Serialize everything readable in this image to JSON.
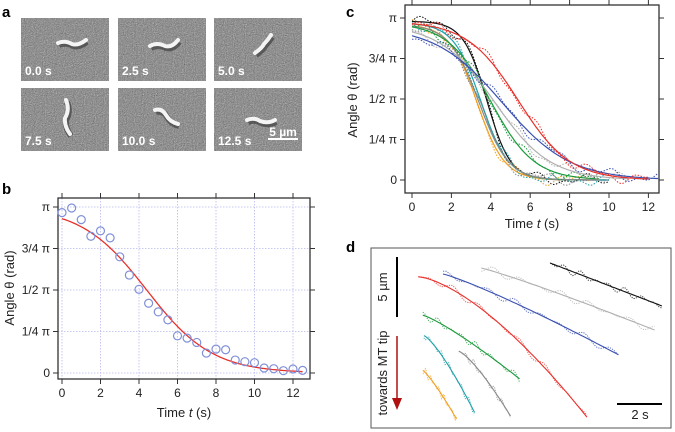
{
  "panel_labels": {
    "a": "a",
    "b": "b",
    "c": "c",
    "d": "d"
  },
  "panel_a": {
    "frames": [
      "0.0 s",
      "2.5 s",
      "5.0 s",
      "7.5 s",
      "10.0 s",
      "12.5 s"
    ],
    "scale_bar": "5 µm"
  },
  "chart_data": [
    {
      "type": "scatter",
      "panel": "b",
      "xlabel": {
        "pre": "Time ",
        "var": "t",
        "post": " (s)"
      },
      "ylabel": "Angle θ (rad)",
      "xlim": [
        0,
        12.5
      ],
      "ylim_frac_pi": [
        0,
        1
      ],
      "xticks": [
        "0",
        "2",
        "4",
        "6",
        "8",
        "10",
        "12"
      ],
      "yticks": [
        "0",
        "1/4 π",
        "1/2 π",
        "3/4 π",
        "π"
      ],
      "grid": true,
      "points_t": [
        0,
        0.5,
        1,
        1.5,
        2,
        2.5,
        3,
        3.5,
        4,
        4.5,
        5,
        5.5,
        6,
        6.5,
        7,
        7.5,
        8,
        8.5,
        9,
        9.5,
        10,
        10.5,
        11,
        11.5,
        12,
        12.5
      ],
      "points_theta_frac_pi": [
        0.966,
        0.994,
        0.924,
        0.824,
        0.856,
        0.814,
        0.7,
        0.59,
        0.504,
        0.42,
        0.368,
        0.32,
        0.224,
        0.21,
        0.184,
        0.12,
        0.144,
        0.14,
        0.078,
        0.068,
        0.062,
        0.03,
        0.026,
        0.014,
        0.024,
        0.016
      ],
      "point_color": "#8090d8",
      "fit": {
        "type": "sigmoid",
        "amplitude_frac_pi": 1.0,
        "t_half": 4.4,
        "width": 1.7,
        "color": "#e8302a"
      }
    },
    {
      "type": "line",
      "panel": "c",
      "xlabel": {
        "pre": "Time ",
        "var": "t",
        "post": " (s)"
      },
      "ylabel": "Angle θ (rad)",
      "xlim": [
        0,
        12.5
      ],
      "ylim_frac_pi": [
        0,
        1
      ],
      "xticks": [
        "0",
        "2",
        "4",
        "6",
        "8",
        "10",
        "12"
      ],
      "yticks": [
        "0",
        "1/4 π",
        "1/2 π",
        "3/4 π",
        "π"
      ],
      "series": [
        {
          "name": "black",
          "color": "#111111",
          "amplitude": 0.98,
          "t_half": 3.8,
          "width": 0.6,
          "t_end": 10
        },
        {
          "name": "orange",
          "color": "#f0a020",
          "amplitude": 0.96,
          "t_half": 3.3,
          "width": 0.7,
          "t_end": 9
        },
        {
          "name": "cyan",
          "color": "#20a0a8",
          "amplitude": 0.97,
          "t_half": 3.5,
          "width": 0.7,
          "t_end": 10
        },
        {
          "name": "gray",
          "color": "#888888",
          "amplitude": 0.96,
          "t_half": 3.4,
          "width": 0.75,
          "t_end": 9.5
        },
        {
          "name": "green",
          "color": "#1a9a3a",
          "amplitude": 0.97,
          "t_half": 4.0,
          "width": 1.1,
          "t_end": 9.5
        },
        {
          "name": "lightgray",
          "color": "#b0b0b0",
          "amplitude": 0.96,
          "t_half": 4.2,
          "width": 1.4,
          "t_end": 11
        },
        {
          "name": "blue",
          "color": "#3a50b0",
          "amplitude": 0.95,
          "t_half": 4.6,
          "width": 1.7,
          "t_end": 12.5
        },
        {
          "name": "red",
          "color": "#e8302a",
          "amplitude": 0.98,
          "t_half": 5.4,
          "width": 1.3,
          "t_end": 12
        }
      ]
    },
    {
      "type": "line",
      "panel": "d",
      "scale_bars": {
        "position": "5 µm",
        "time": "2 s"
      },
      "direction_label": "towards MT tip",
      "direction_color": "#b01010",
      "xunit": "s",
      "yunit": "µm",
      "series": [
        {
          "name": "black",
          "color": "#111111",
          "t": [
            7.96,
            12.93
          ],
          "pos": [
            1.25,
            4.83
          ],
          "curv": 0.0
        },
        {
          "name": "lightgray",
          "color": "#b0b0b0",
          "t": [
            4.9,
            12.6
          ],
          "pos": [
            1.67,
            6.83
          ],
          "curv": 0.1
        },
        {
          "name": "blue",
          "color": "#3a50b0",
          "t": [
            3.2,
            11.0
          ],
          "pos": [
            2.17,
            8.9
          ],
          "curv": 0.15
        },
        {
          "name": "red",
          "color": "#e8302a",
          "t": [
            2.1,
            9.6
          ],
          "pos": [
            2.4,
            14.1
          ],
          "curv": 0.5
        },
        {
          "name": "green",
          "color": "#1a9a3a",
          "t": [
            2.3,
            6.6
          ],
          "pos": [
            5.6,
            10.9
          ],
          "curv": 0.2
        },
        {
          "name": "cyan",
          "color": "#20a0a8",
          "t": [
            2.35,
            4.6
          ],
          "pos": [
            7.3,
            13.7
          ],
          "curv": 0.3
        },
        {
          "name": "gray",
          "color": "#888888",
          "t": [
            3.9,
            6.2
          ],
          "pos": [
            8.6,
            14.0
          ],
          "curv": 0.3
        },
        {
          "name": "orange",
          "color": "#f0a020",
          "t": [
            2.3,
            3.8
          ],
          "pos": [
            10.2,
            14.25
          ],
          "curv": 0.2
        }
      ]
    }
  ]
}
